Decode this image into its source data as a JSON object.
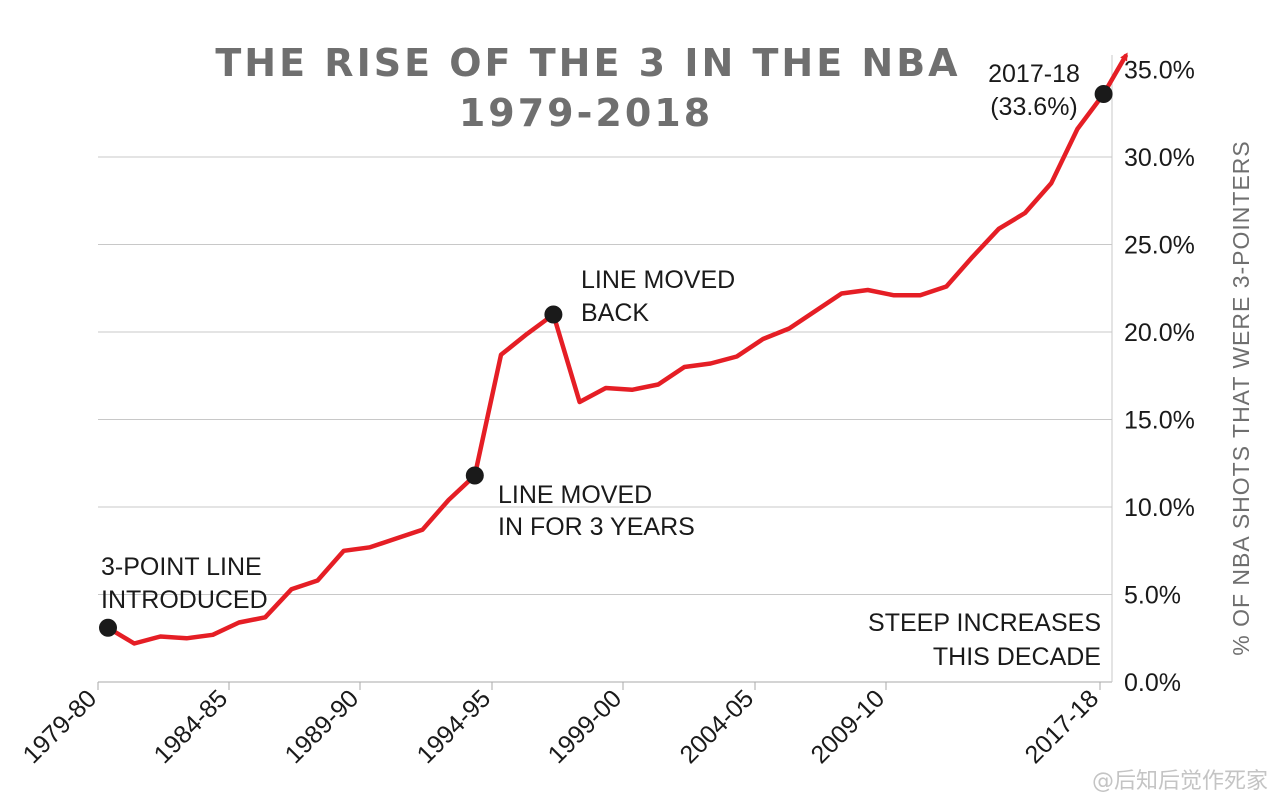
{
  "chart_data": {
    "type": "line",
    "title_line1": "THE RISE OF THE 3 IN THE NBA",
    "title_line2": "1979-2018",
    "ylabel": "% OF NBA SHOTS THAT WERE 3-POINTERS",
    "ylim": [
      0,
      35
    ],
    "y_ticks": [
      "0.0%",
      "5.0%",
      "10.0%",
      "15.0%",
      "20.0%",
      "25.0%",
      "30.0%",
      "35.0%"
    ],
    "x_tick_labels": [
      "1979-80",
      "1984-85",
      "1989-90",
      "1994-95",
      "1999-00",
      "2004-05",
      "2009-10",
      "2017-18"
    ],
    "x": [
      "1979-80",
      "1980-81",
      "1981-82",
      "1982-83",
      "1983-84",
      "1984-85",
      "1985-86",
      "1986-87",
      "1987-88",
      "1988-89",
      "1989-90",
      "1990-91",
      "1991-92",
      "1992-93",
      "1993-94",
      "1994-95",
      "1995-96",
      "1996-97",
      "1997-98",
      "1998-99",
      "1999-00",
      "2000-01",
      "2001-02",
      "2002-03",
      "2003-04",
      "2004-05",
      "2005-06",
      "2006-07",
      "2007-08",
      "2008-09",
      "2009-10",
      "2010-11",
      "2011-12",
      "2012-13",
      "2013-14",
      "2014-15",
      "2015-16",
      "2016-17",
      "2017-18"
    ],
    "series": [
      {
        "values": [
          3.1,
          2.2,
          2.6,
          2.5,
          2.7,
          3.4,
          3.7,
          5.3,
          5.8,
          7.5,
          7.7,
          8.2,
          8.7,
          10.4,
          11.8,
          18.7,
          19.9,
          21.0,
          16.0,
          16.8,
          16.7,
          17.0,
          18.0,
          18.2,
          18.6,
          19.6,
          20.2,
          21.2,
          22.2,
          22.4,
          22.1,
          22.1,
          22.6,
          24.3,
          25.9,
          26.8,
          28.5,
          31.6,
          33.6
        ]
      }
    ],
    "line_color": "#e51e25",
    "grid": "horizontal",
    "annotations": [
      {
        "index": 0,
        "lines": [
          "3-POINT LINE",
          "INTRODUCED"
        ]
      },
      {
        "index": 14,
        "lines": [
          "LINE MOVED",
          "IN FOR 3 YEARS"
        ]
      },
      {
        "index": 17,
        "lines": [
          "LINE MOVED",
          "BACK"
        ]
      },
      {
        "index": 38,
        "lines": [
          "2017-18",
          "(33.6%)"
        ]
      }
    ],
    "note_lines": [
      "STEEP INCREASES",
      "THIS DECADE"
    ]
  },
  "watermark": "@后知后觉作死家"
}
